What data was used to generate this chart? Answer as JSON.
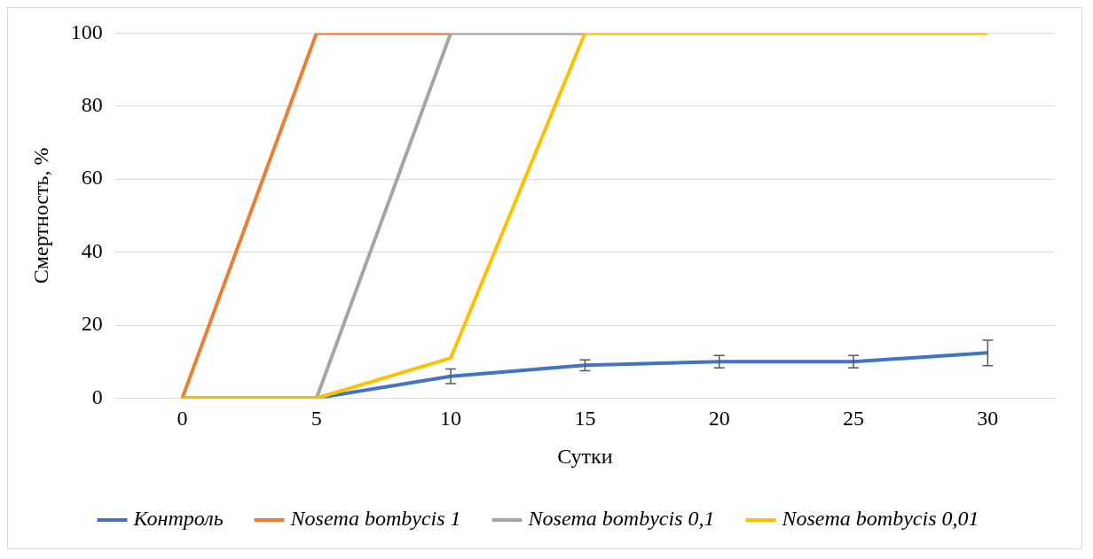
{
  "chart_data": {
    "type": "line",
    "xlabel": "Сутки",
    "ylabel": "Смертность, %",
    "categories": [
      "0",
      "5",
      "10",
      "15",
      "20",
      "25",
      "30"
    ],
    "series": [
      {
        "name": "Контроль",
        "color": "#4472c4",
        "values": [
          0,
          0,
          6,
          9,
          10,
          10,
          12.4
        ],
        "errors": [
          null,
          null,
          2,
          1.5,
          1.7,
          1.7,
          3.5
        ]
      },
      {
        "name": "Nosema bombycis 1",
        "color": "#ed7d31",
        "values": [
          0,
          100,
          100,
          null,
          null,
          null,
          null
        ]
      },
      {
        "name": "Nosema bombycis 0,1",
        "color": "#a5a5a5",
        "values": [
          0,
          0,
          100,
          100,
          null,
          null,
          null
        ]
      },
      {
        "name": "Nosema bombycis 0,01",
        "color": "#ffc000",
        "values": [
          0,
          0,
          11,
          100,
          100,
          100,
          100
        ]
      }
    ],
    "ylim": [
      0,
      100
    ],
    "yticks": [
      0,
      20,
      40,
      60,
      80,
      100
    ],
    "grid": "y",
    "legend": "bottom",
    "line_style": "solid"
  }
}
